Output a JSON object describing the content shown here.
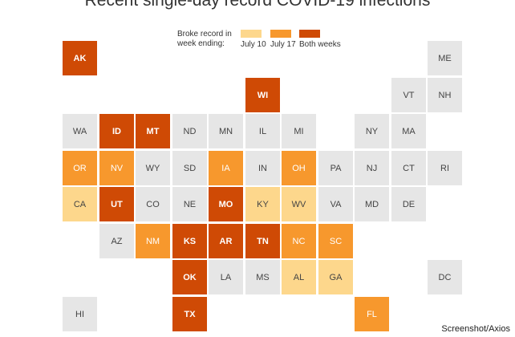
{
  "chart_data": {
    "type": "heatmap",
    "title": "Recent single-day record COVID-19 infections",
    "legend": {
      "title": "Broke record in week ending:",
      "placement": "top",
      "categories": [
        {
          "key": "jul10",
          "label": "July 10",
          "color": "#fdd78c"
        },
        {
          "key": "jul17",
          "label": "July 17",
          "color": "#f7982d"
        },
        {
          "key": "both",
          "label": "Both weeks",
          "color": "#cf4a05"
        }
      ],
      "none_color": "#e6e6e6"
    },
    "states": [
      {
        "abbr": "AK",
        "col": 0,
        "row": 0,
        "status": "both"
      },
      {
        "abbr": "ME",
        "col": 10,
        "row": 0,
        "status": "none"
      },
      {
        "abbr": "WI",
        "col": 5,
        "row": 1,
        "status": "both"
      },
      {
        "abbr": "VT",
        "col": 9,
        "row": 1,
        "status": "none"
      },
      {
        "abbr": "NH",
        "col": 10,
        "row": 1,
        "status": "none"
      },
      {
        "abbr": "WA",
        "col": 0,
        "row": 2,
        "status": "none"
      },
      {
        "abbr": "ID",
        "col": 1,
        "row": 2,
        "status": "both"
      },
      {
        "abbr": "MT",
        "col": 2,
        "row": 2,
        "status": "both"
      },
      {
        "abbr": "ND",
        "col": 3,
        "row": 2,
        "status": "none"
      },
      {
        "abbr": "MN",
        "col": 4,
        "row": 2,
        "status": "none"
      },
      {
        "abbr": "IL",
        "col": 5,
        "row": 2,
        "status": "none"
      },
      {
        "abbr": "MI",
        "col": 6,
        "row": 2,
        "status": "none"
      },
      {
        "abbr": "NY",
        "col": 8,
        "row": 2,
        "status": "none"
      },
      {
        "abbr": "MA",
        "col": 9,
        "row": 2,
        "status": "none"
      },
      {
        "abbr": "OR",
        "col": 0,
        "row": 3,
        "status": "jul17"
      },
      {
        "abbr": "NV",
        "col": 1,
        "row": 3,
        "status": "jul17"
      },
      {
        "abbr": "WY",
        "col": 2,
        "row": 3,
        "status": "none"
      },
      {
        "abbr": "SD",
        "col": 3,
        "row": 3,
        "status": "none"
      },
      {
        "abbr": "IA",
        "col": 4,
        "row": 3,
        "status": "jul17"
      },
      {
        "abbr": "IN",
        "col": 5,
        "row": 3,
        "status": "none"
      },
      {
        "abbr": "OH",
        "col": 6,
        "row": 3,
        "status": "jul17"
      },
      {
        "abbr": "PA",
        "col": 7,
        "row": 3,
        "status": "none"
      },
      {
        "abbr": "NJ",
        "col": 8,
        "row": 3,
        "status": "none"
      },
      {
        "abbr": "CT",
        "col": 9,
        "row": 3,
        "status": "none"
      },
      {
        "abbr": "RI",
        "col": 10,
        "row": 3,
        "status": "none"
      },
      {
        "abbr": "CA",
        "col": 0,
        "row": 4,
        "status": "jul10"
      },
      {
        "abbr": "UT",
        "col": 1,
        "row": 4,
        "status": "both"
      },
      {
        "abbr": "CO",
        "col": 2,
        "row": 4,
        "status": "none"
      },
      {
        "abbr": "NE",
        "col": 3,
        "row": 4,
        "status": "none"
      },
      {
        "abbr": "MO",
        "col": 4,
        "row": 4,
        "status": "both"
      },
      {
        "abbr": "KY",
        "col": 5,
        "row": 4,
        "status": "jul10"
      },
      {
        "abbr": "WV",
        "col": 6,
        "row": 4,
        "status": "jul10"
      },
      {
        "abbr": "VA",
        "col": 7,
        "row": 4,
        "status": "none"
      },
      {
        "abbr": "MD",
        "col": 8,
        "row": 4,
        "status": "none"
      },
      {
        "abbr": "DE",
        "col": 9,
        "row": 4,
        "status": "none"
      },
      {
        "abbr": "AZ",
        "col": 1,
        "row": 5,
        "status": "none"
      },
      {
        "abbr": "NM",
        "col": 2,
        "row": 5,
        "status": "jul17"
      },
      {
        "abbr": "KS",
        "col": 3,
        "row": 5,
        "status": "both"
      },
      {
        "abbr": "AR",
        "col": 4,
        "row": 5,
        "status": "both"
      },
      {
        "abbr": "TN",
        "col": 5,
        "row": 5,
        "status": "both"
      },
      {
        "abbr": "NC",
        "col": 6,
        "row": 5,
        "status": "jul17"
      },
      {
        "abbr": "SC",
        "col": 7,
        "row": 5,
        "status": "jul17"
      },
      {
        "abbr": "OK",
        "col": 3,
        "row": 6,
        "status": "both"
      },
      {
        "abbr": "LA",
        "col": 4,
        "row": 6,
        "status": "none"
      },
      {
        "abbr": "MS",
        "col": 5,
        "row": 6,
        "status": "none"
      },
      {
        "abbr": "AL",
        "col": 6,
        "row": 6,
        "status": "jul10"
      },
      {
        "abbr": "GA",
        "col": 7,
        "row": 6,
        "status": "jul10"
      },
      {
        "abbr": "DC",
        "col": 10,
        "row": 6,
        "status": "none"
      },
      {
        "abbr": "HI",
        "col": 0,
        "row": 7,
        "status": "none"
      },
      {
        "abbr": "TX",
        "col": 3,
        "row": 7,
        "status": "both"
      },
      {
        "abbr": "FL",
        "col": 8,
        "row": 7,
        "status": "jul17"
      }
    ]
  },
  "credit": "Screenshot/Axios"
}
